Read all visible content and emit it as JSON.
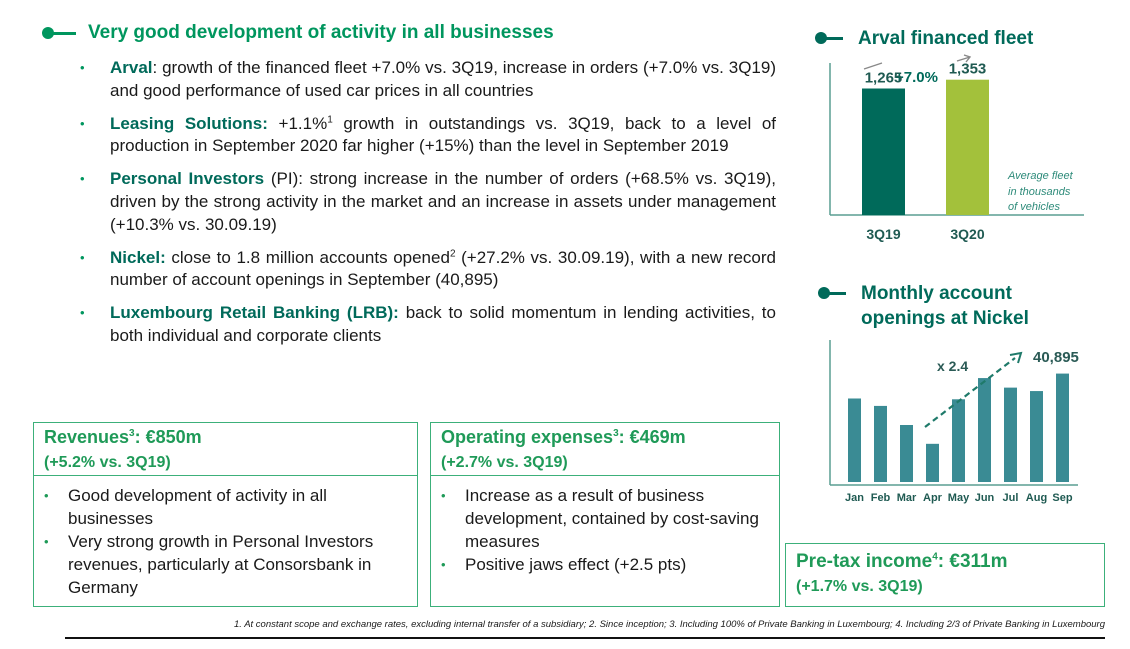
{
  "main": {
    "title": "Very good development of activity in all businesses",
    "bullets": [
      {
        "head": "Arval",
        "text": ": growth of the financed fleet +7.0% vs. 3Q19, increase in orders (+7.0% vs. 3Q19) and good performance of used car prices in all countries"
      },
      {
        "head": "Leasing Solutions:",
        "text_a": " +1.1%",
        "sup": "1",
        "text_b": " growth in outstandings vs. 3Q19, back to a level of production in September 2020 far higher (+15%) than the level in September 2019"
      },
      {
        "head": "Personal Investors",
        "text": " (PI): strong increase in the number of orders (+68.5% vs. 3Q19), driven by the strong activity in the market and an increase in assets under management (+10.3% vs. 30.09.19)"
      },
      {
        "head": "Nickel:",
        "text_a": " close to 1.8 million accounts opened",
        "sup": "2",
        "text_b": " (+27.2% vs. 30.09.19), with a new record number of account openings in September (40,895)"
      },
      {
        "head": "Luxembourg Retail Banking (LRB):",
        "text": " back to solid momentum in lending activities, to both individual and corporate clients"
      }
    ]
  },
  "boxes": {
    "revenues": {
      "title_a": "Revenues",
      "sup": "3",
      "title_b": ": €850m",
      "sub": "(+5.2% vs. 3Q19)",
      "items": [
        "Good development of activity in all businesses",
        "Very strong growth in Personal Investors revenues, particularly at Consorsbank in Germany"
      ]
    },
    "opex": {
      "title_a": "Operating expenses",
      "sup": "3",
      "title_b": ": €469m",
      "sub": "(+2.7% vs. 3Q19)",
      "items": [
        "Increase as a result of business development, contained by cost-saving measures",
        "Positive jaws effect (+2.5 pts)"
      ]
    },
    "pretax": {
      "title_a": "Pre-tax income",
      "sup": "4",
      "title_b": ": €311m",
      "sub": "(+1.7% vs. 3Q19)"
    }
  },
  "footnote": "1. At constant scope and exchange rates, excluding internal transfer of a subsidiary; 2. Since inception; 3. Including 100% of Private Banking in Luxembourg; 4. Including 2/3 of Private Banking in Luxembourg",
  "colors": {
    "green": "#00965e",
    "teal": "#006a5a",
    "lime": "#a3c13b",
    "nickel": "#3a8b94",
    "border": "#3cb07a"
  },
  "chart_data": [
    {
      "type": "bar",
      "title": "Arval financed fleet",
      "categories": [
        "3Q19",
        "3Q20"
      ],
      "values": [
        1265,
        1353
      ],
      "value_labels": [
        "1,265",
        "1,353"
      ],
      "annotation": "+7.0%",
      "note": [
        "Average fleet",
        "in thousands",
        "of vehicles"
      ],
      "ylim": [
        0,
        1650
      ]
    },
    {
      "type": "bar",
      "title_lines": [
        "Monthly account",
        "openings at Nickel"
      ],
      "categories": [
        "Jan",
        "Feb",
        "Mar",
        "Apr",
        "May",
        "Jun",
        "Jul",
        "Aug",
        "Sep"
      ],
      "values": [
        31500,
        28700,
        21500,
        14400,
        31200,
        39200,
        35600,
        34300,
        40895
      ],
      "value_label": "40,895",
      "annotation": "x 2.4",
      "ylim": [
        0,
        43000
      ]
    }
  ]
}
